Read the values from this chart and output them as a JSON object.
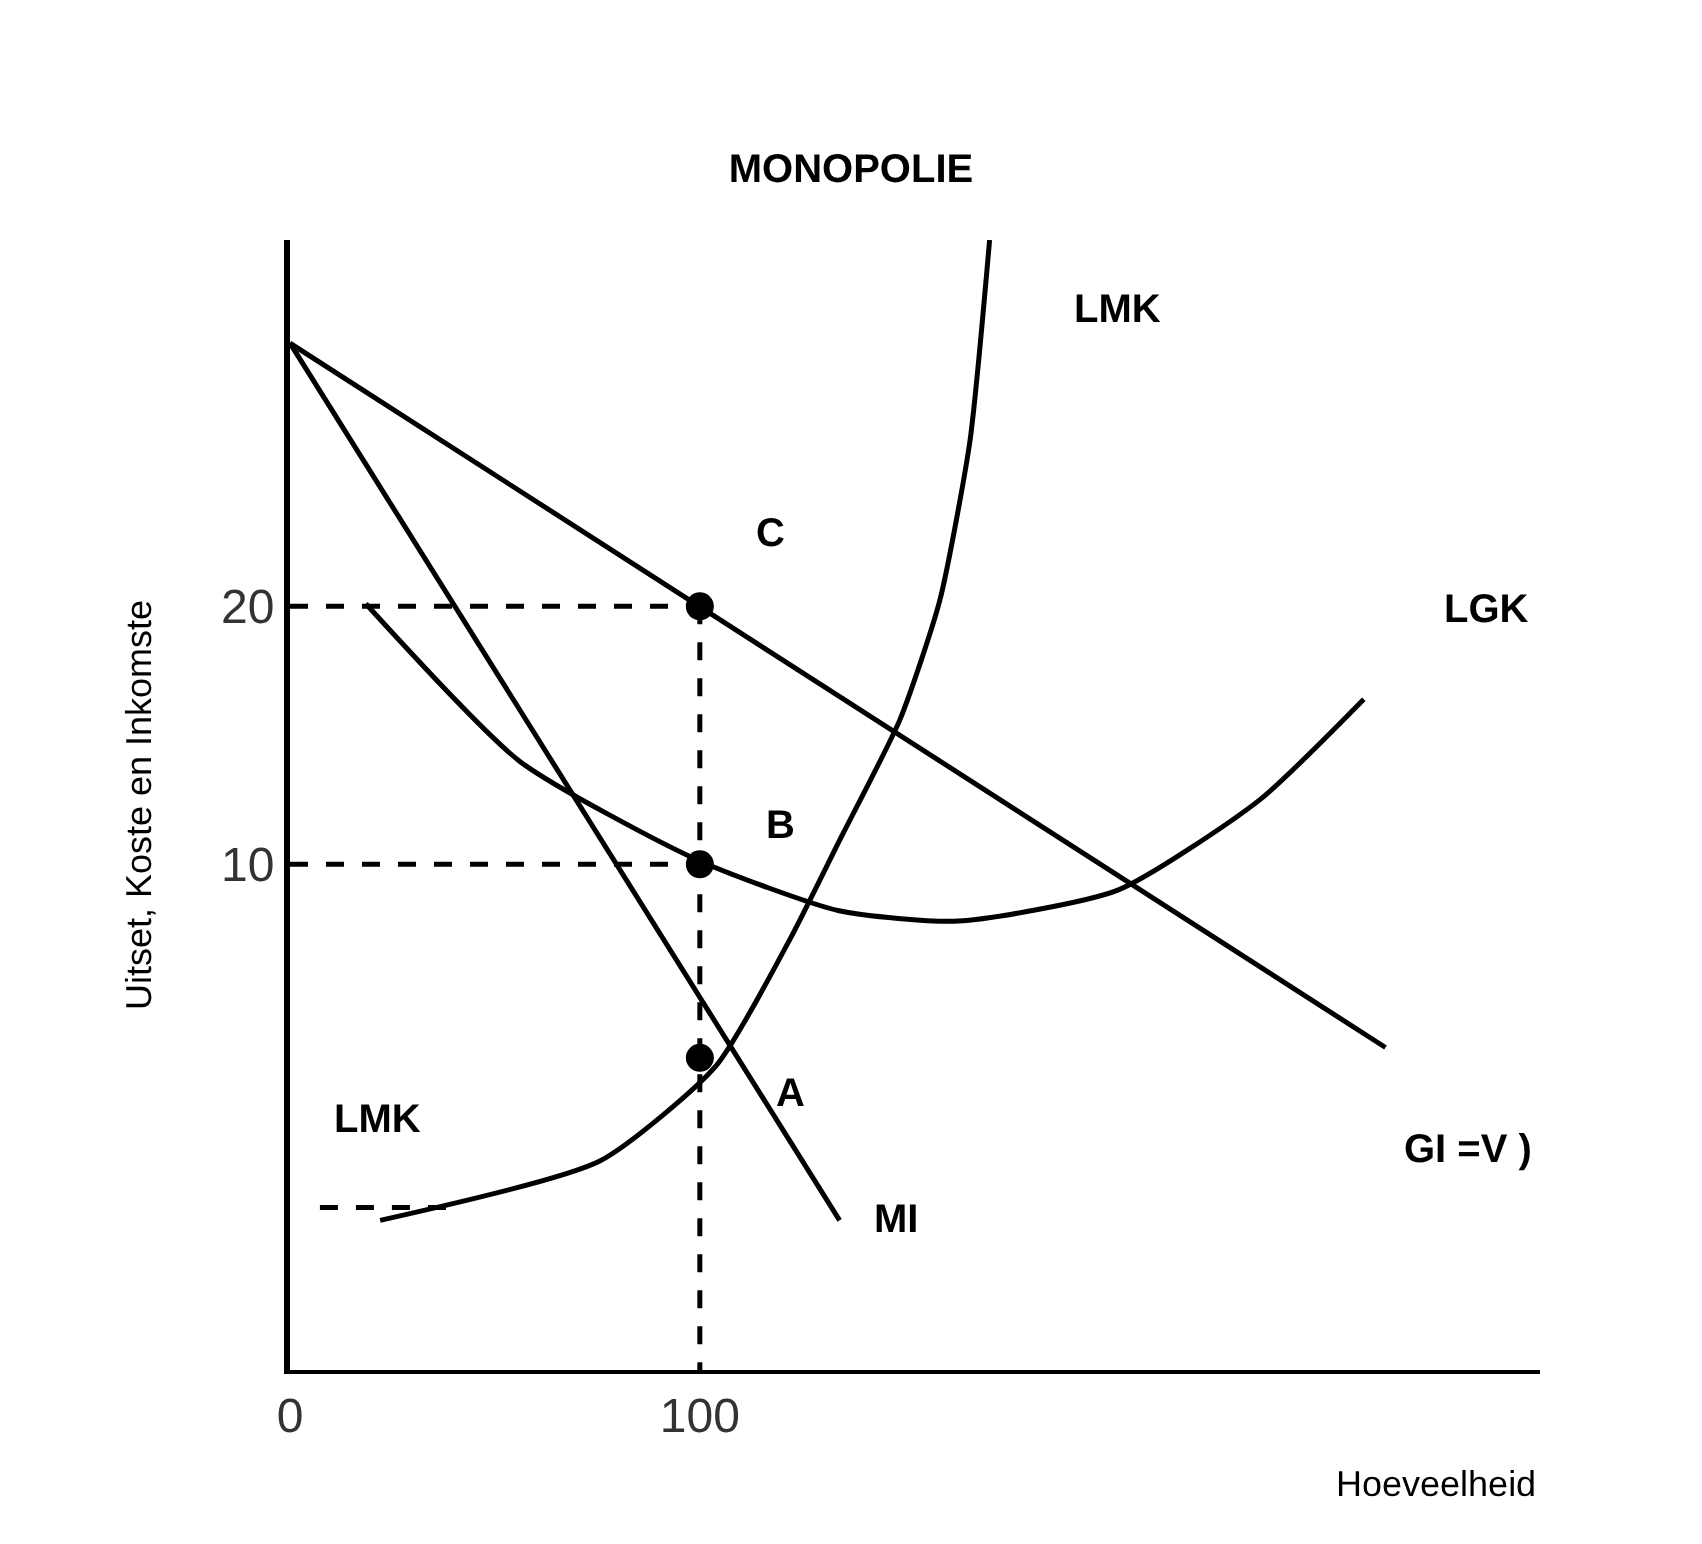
{
  "chart_data": {
    "type": "line",
    "title": "MONOPOLIE",
    "xlabel": "Hoeveelheid",
    "ylabel": "Uitset, Koste en Inkomste",
    "xlim": [
      0,
      305
    ],
    "xticks": [
      0,
      100
    ],
    "ylim": [
      -9.6,
      34.2
    ],
    "yticks": [
      10,
      20
    ],
    "grid": false,
    "series": [
      {
        "type": "line",
        "color": "#000000",
        "x": [
          0,
          267.3
        ],
        "values": [
          30.2,
          2.9
        ]
      },
      {
        "type": "line",
        "color": "#000000",
        "x": [
          0,
          134.1
        ],
        "values": [
          30.2,
          -3.8
        ]
      },
      {
        "type": "line",
        "color": "#000000",
        "x": [
          22,
          75.6,
          104,
          122,
          134,
          148.8,
          158.5,
          165.9,
          170.7
        ],
        "values": [
          -3.8,
          -1.5,
          2.2,
          7.1,
          10.9,
          15.6,
          20.2,
          26.4,
          34.2
        ]
      },
      {
        "type": "line",
        "color": "#000000",
        "x": [
          18.5,
          56,
          99,
          134,
          163,
          202,
          236.6,
          262
        ],
        "values": [
          20.1,
          14,
          10.2,
          8.2,
          7.8,
          9,
          12.5,
          16.4
        ]
      },
      {
        "type": "line",
        "color": "#000000",
        "line_style": "dashed",
        "x": [
          0,
          100
        ],
        "values": [
          20,
          20
        ]
      },
      {
        "type": "line",
        "color": "#000000",
        "line_style": "dashed",
        "x": [
          0,
          100
        ],
        "values": [
          10,
          10
        ]
      },
      {
        "type": "line",
        "color": "#000000",
        "line_style": "dashed",
        "x": [
          100,
          100
        ],
        "values": [
          20,
          -9.6
        ]
      },
      {
        "type": "line",
        "color": "#000000",
        "line_style": "dashed",
        "x": [
          7.3,
          41.5
        ],
        "values": [
          -3.3,
          -3.3
        ]
      },
      {
        "type": "scatter",
        "color": "#000000",
        "marker": "circle",
        "x": [
          100,
          100,
          100
        ],
        "values": [
          20,
          10,
          2.5
        ]
      }
    ],
    "annotations": [
      "C",
      "B",
      "A",
      "LMK",
      "LGK",
      "GI =V )",
      "MI",
      "LMK"
    ]
  }
}
